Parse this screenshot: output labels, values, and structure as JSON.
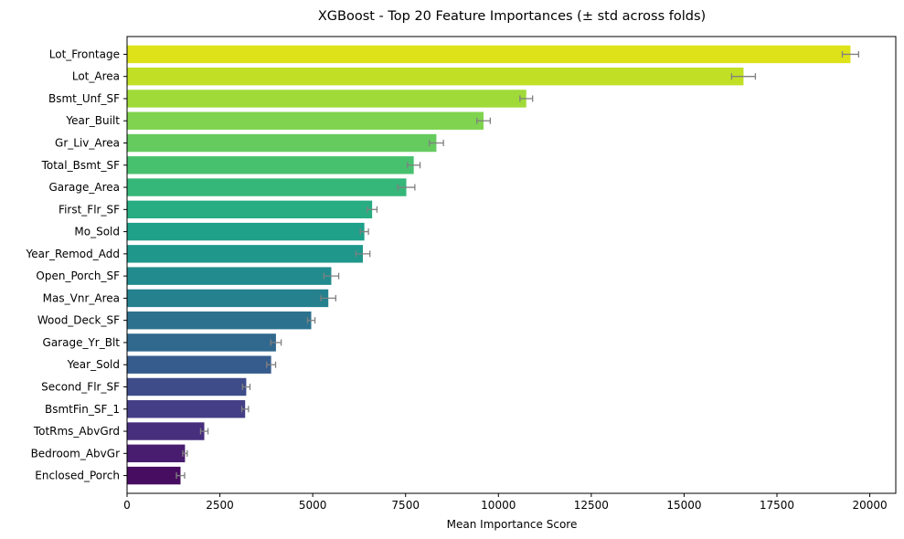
{
  "chart_data": {
    "type": "bar",
    "orientation": "horizontal",
    "title": "XGBoost - Top 20 Feature Importances (± std across folds)",
    "xlabel": "Mean Importance Score",
    "ylabel": "",
    "xlim": [
      0,
      20700
    ],
    "xticks": [
      0,
      2500,
      5000,
      7500,
      10000,
      12500,
      15000,
      17500,
      20000
    ],
    "xtick_labels": [
      "0",
      "2500",
      "5000",
      "7500",
      "10000",
      "12500",
      "15000",
      "17500",
      "20000"
    ],
    "grid": false,
    "error_bar_color": "#808080",
    "categories": [
      "Lot_Frontage",
      "Lot_Area",
      "Bsmt_Unf_SF",
      "Year_Built",
      "Gr_Liv_Area",
      "Total_Bsmt_SF",
      "Garage_Area",
      "First_Flr_SF",
      "Mo_Sold",
      "Year_Remod_Add",
      "Open_Porch_SF",
      "Mas_Vnr_Area",
      "Wood_Deck_SF",
      "Garage_Yr_Blt",
      "Year_Sold",
      "Second_Flr_SF",
      "BsmtFin_SF_1",
      "TotRms_AbvGrd",
      "Bedroom_AbvGr",
      "Enclosed_Porch"
    ],
    "values": [
      19480,
      16600,
      10750,
      9600,
      8330,
      7720,
      7520,
      6600,
      6390,
      6350,
      5500,
      5420,
      4960,
      4010,
      3880,
      3210,
      3180,
      2080,
      1560,
      1440
    ],
    "errors": [
      220,
      320,
      170,
      180,
      190,
      170,
      230,
      130,
      110,
      190,
      200,
      200,
      100,
      140,
      120,
      100,
      90,
      100,
      60,
      110
    ],
    "colors": [
      "#dde318",
      "#c0df25",
      "#a0da39",
      "#7fd34e",
      "#65cb5e",
      "#48c16e",
      "#35b779",
      "#27ad81",
      "#1fa088",
      "#1f978b",
      "#228b8d",
      "#26818e",
      "#2c728e",
      "#31688e",
      "#365c8d",
      "#3e4c8a",
      "#433e85",
      "#472f7d",
      "#481d6f",
      "#470d60"
    ]
  }
}
